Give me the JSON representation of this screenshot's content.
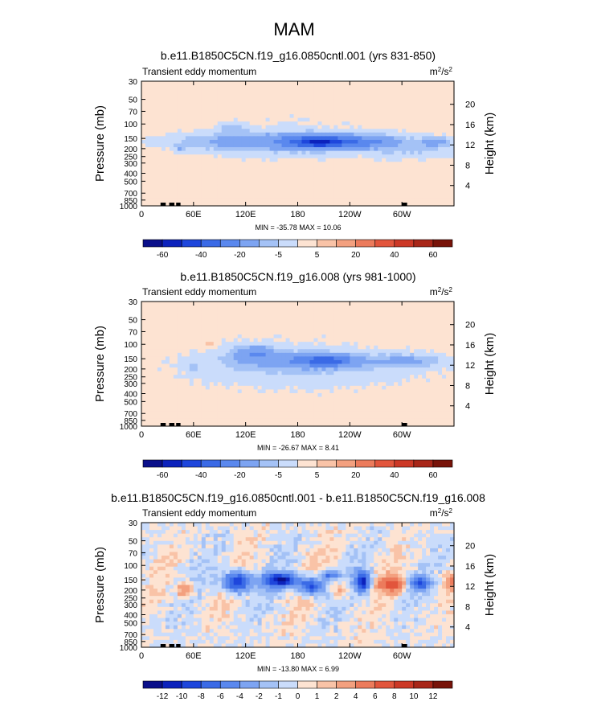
{
  "figure_title": "MAM",
  "chart_data": [
    {
      "type": "heatmap",
      "title": "b.e11.B1850C5CN.f19_g16.0850cntl.001 (yrs 831-850)",
      "subtitle": "Transient eddy momentum",
      "units": "m2/s2",
      "ylabel": "Pressure (mb)",
      "y2label": "Height (km)",
      "xlabel": "",
      "x_ticks": [
        "0",
        "60E",
        "120E",
        "180",
        "120W",
        "60W"
      ],
      "x_tick_values": [
        0,
        60,
        120,
        180,
        240,
        300
      ],
      "xlim": [
        0,
        360
      ],
      "pressure_ticks": [
        30,
        50,
        70,
        100,
        150,
        200,
        250,
        300,
        400,
        500,
        700,
        850,
        1000
      ],
      "ylim": [
        1000,
        30
      ],
      "height_ticks": [
        4,
        8,
        12,
        16,
        20
      ],
      "stats": "MIN = -35.78  MAX =  10.06",
      "min": -35.78,
      "max": 10.06,
      "colorbar": {
        "labels": [
          "-60",
          "-40",
          "-20",
          "-5",
          "5",
          "20",
          "40",
          "60"
        ],
        "levels": [
          -70,
          -60,
          -50,
          -40,
          -30,
          -20,
          -10,
          -5,
          0,
          5,
          10,
          20,
          30,
          40,
          50,
          60,
          70
        ],
        "colors": [
          "#0a0f8a",
          "#0c22bc",
          "#1e46dc",
          "#3a6ae6",
          "#5a88ee",
          "#7da4f2",
          "#a4c2f6",
          "#cadcfb",
          "#fde3d2",
          "#f9c3a7",
          "#f3a07f",
          "#ec7b5c",
          "#e2553c",
          "#cc3826",
          "#a82618",
          "#781309"
        ]
      }
    },
    {
      "type": "heatmap",
      "title": "b.e11.B1850C5CN.f19_g16.008 (yrs 981-1000)",
      "subtitle": "Transient eddy momentum",
      "units": "m2/s2",
      "ylabel": "Pressure (mb)",
      "y2label": "Height (km)",
      "xlabel": "",
      "x_ticks": [
        "0",
        "60E",
        "120E",
        "180",
        "120W",
        "60W"
      ],
      "x_tick_values": [
        0,
        60,
        120,
        180,
        240,
        300
      ],
      "xlim": [
        0,
        360
      ],
      "pressure_ticks": [
        30,
        50,
        70,
        100,
        150,
        200,
        250,
        300,
        400,
        500,
        700,
        850,
        1000
      ],
      "ylim": [
        1000,
        30
      ],
      "height_ticks": [
        4,
        8,
        12,
        16,
        20
      ],
      "stats": "MIN = -26.67  MAX =   8.41",
      "min": -26.67,
      "max": 8.41,
      "colorbar": {
        "labels": [
          "-60",
          "-40",
          "-20",
          "-5",
          "5",
          "20",
          "40",
          "60"
        ],
        "levels": [
          -70,
          -60,
          -50,
          -40,
          -30,
          -20,
          -10,
          -5,
          0,
          5,
          10,
          20,
          30,
          40,
          50,
          60,
          70
        ],
        "colors": [
          "#0a0f8a",
          "#0c22bc",
          "#1e46dc",
          "#3a6ae6",
          "#5a88ee",
          "#7da4f2",
          "#a4c2f6",
          "#cadcfb",
          "#fde3d2",
          "#f9c3a7",
          "#f3a07f",
          "#ec7b5c",
          "#e2553c",
          "#cc3826",
          "#a82618",
          "#781309"
        ]
      }
    },
    {
      "type": "heatmap",
      "title": "b.e11.B1850C5CN.f19_g16.0850cntl.001 - b.e11.B1850C5CN.f19_g16.008",
      "subtitle": "Transient eddy momentum",
      "units": "m2/s2",
      "ylabel": "Pressure (mb)",
      "y2label": "Height (km)",
      "xlabel": "",
      "x_ticks": [
        "0",
        "60E",
        "120E",
        "180",
        "120W",
        "60W"
      ],
      "x_tick_values": [
        0,
        60,
        120,
        180,
        240,
        300
      ],
      "xlim": [
        0,
        360
      ],
      "pressure_ticks": [
        30,
        50,
        70,
        100,
        150,
        200,
        250,
        300,
        400,
        500,
        700,
        850,
        1000
      ],
      "ylim": [
        1000,
        30
      ],
      "height_ticks": [
        4,
        8,
        12,
        16,
        20
      ],
      "stats": "MIN = -13.80  MAX =   6.99",
      "min": -13.8,
      "max": 6.99,
      "colorbar": {
        "labels": [
          "-12",
          "-10",
          "-8",
          "-6",
          "-4",
          "-2",
          "-1",
          "0",
          "1",
          "2",
          "4",
          "6",
          "8",
          "10",
          "12"
        ],
        "levels": [
          -14,
          -12,
          -10,
          -8,
          -6,
          -4,
          -2,
          -1,
          0,
          1,
          2,
          4,
          6,
          8,
          10,
          12,
          14
        ],
        "colors": [
          "#0a0f8a",
          "#0c22bc",
          "#1e46dc",
          "#3a6ae6",
          "#5a88ee",
          "#7da4f2",
          "#a4c2f6",
          "#cadcfb",
          "#fde3d2",
          "#f9c3a7",
          "#f3a07f",
          "#ec7b5c",
          "#e2553c",
          "#cc3826",
          "#a82618",
          "#781309"
        ]
      }
    }
  ]
}
